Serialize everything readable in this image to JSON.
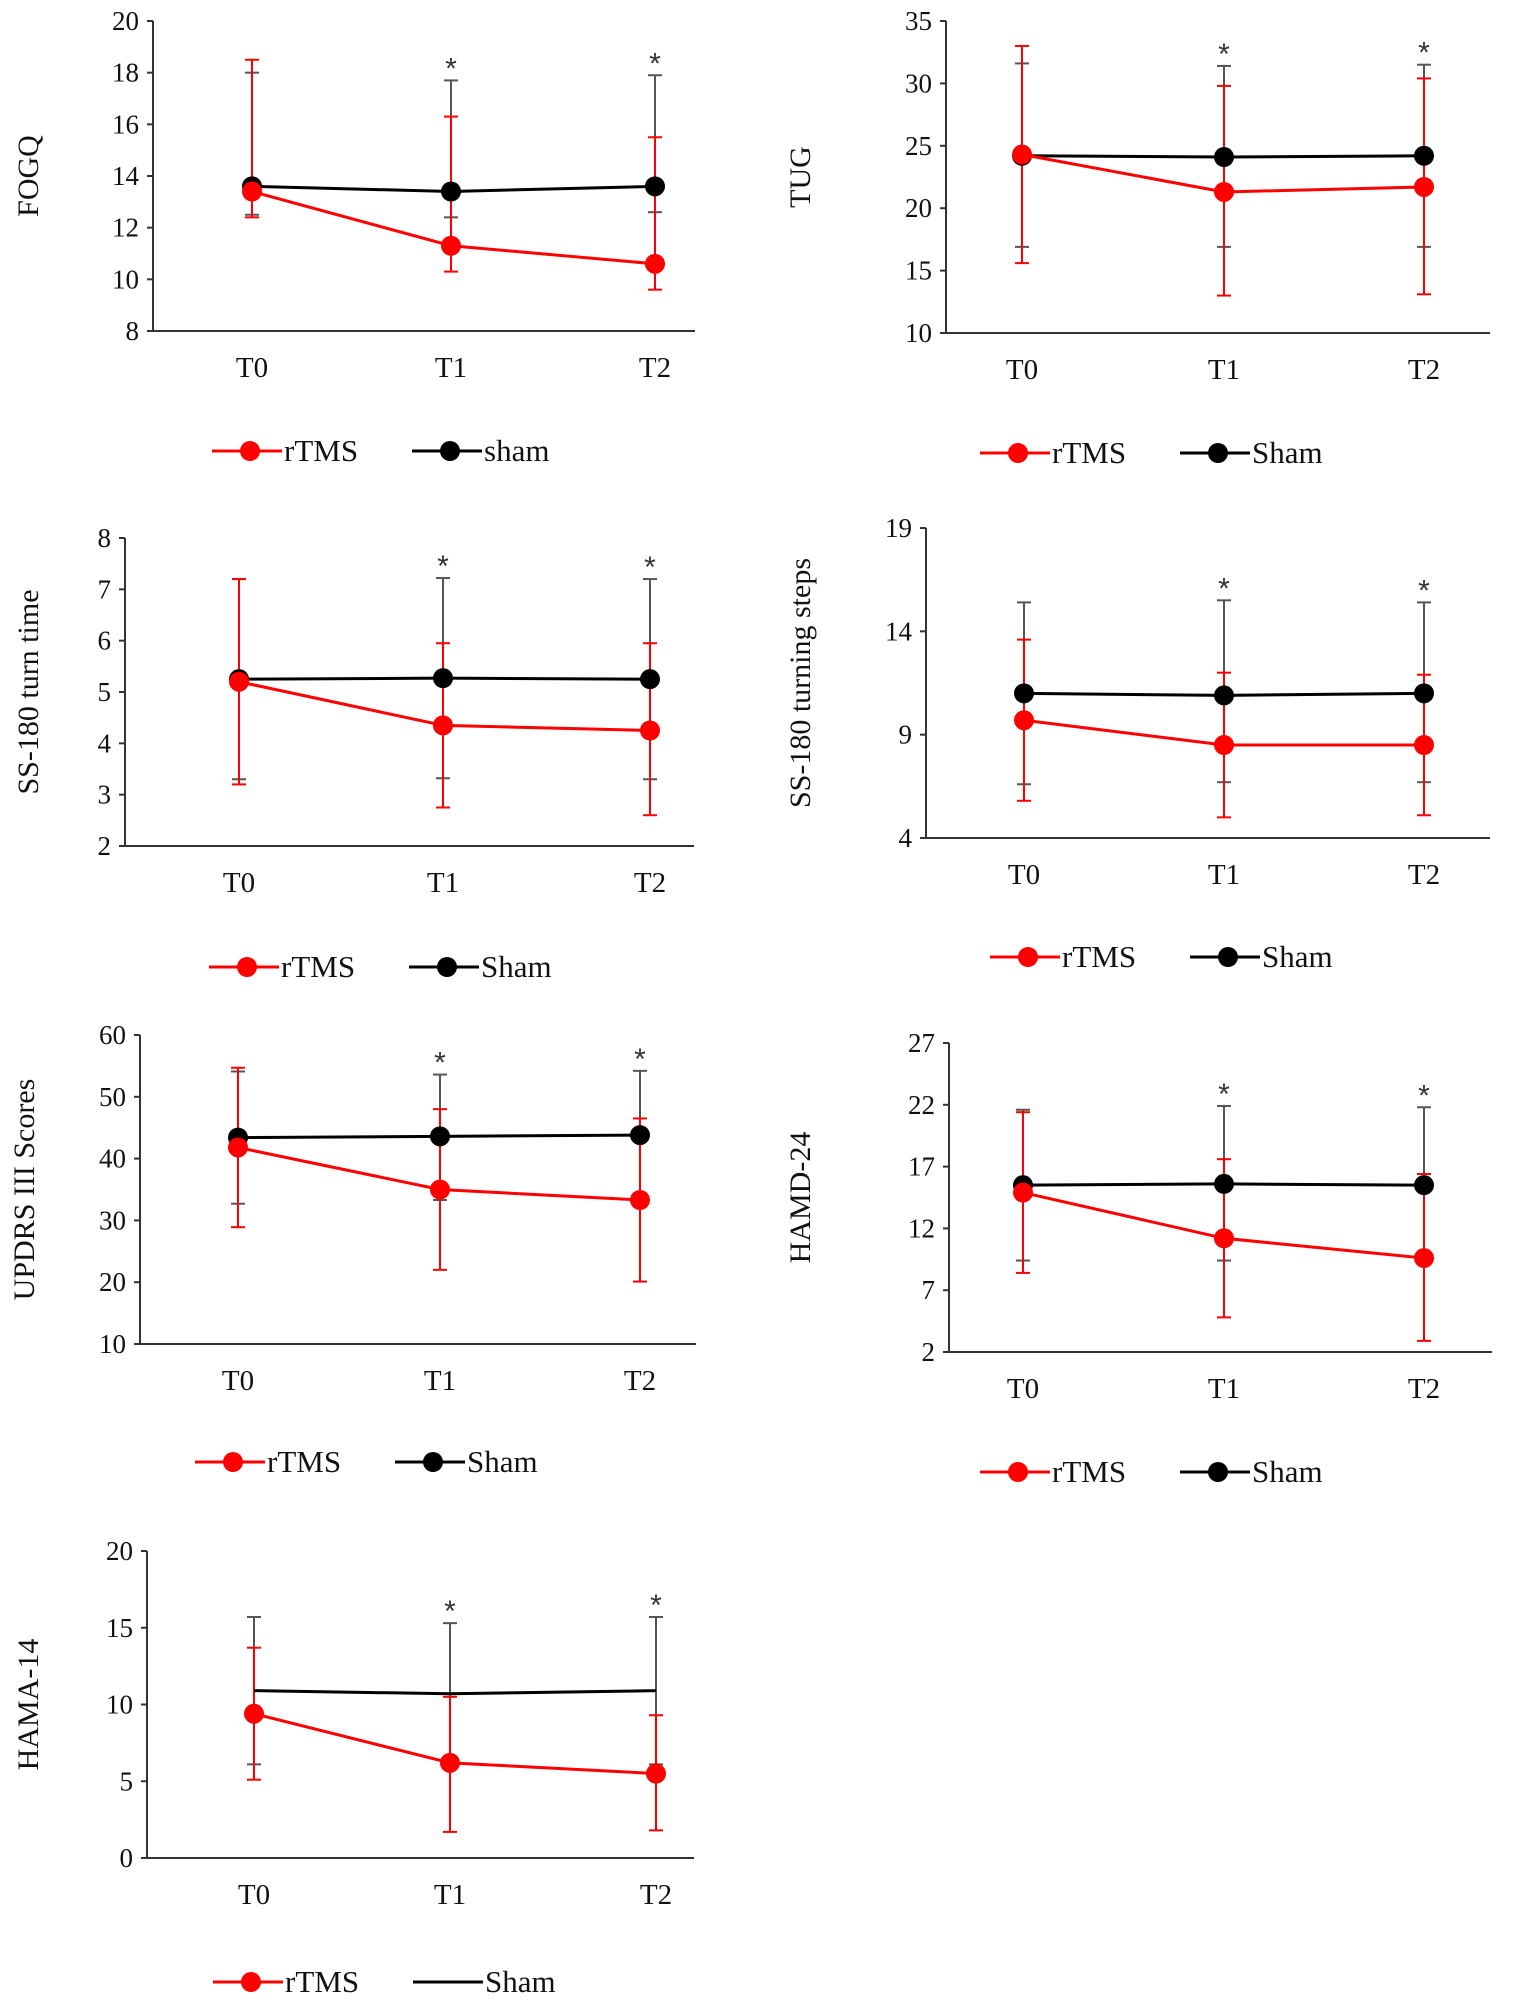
{
  "chart_data": [
    {
      "type": "line",
      "ylabel": "FOGQ",
      "categories": [
        "T0",
        "T1",
        "T2"
      ],
      "ylim": [
        8,
        20
      ],
      "yticks": [
        8,
        10,
        12,
        14,
        16,
        18,
        20
      ],
      "series": [
        {
          "name": "rTMS",
          "color": "#ff0000",
          "values": [
            13.4,
            11.3,
            10.6
          ],
          "error_up": [
            5.1,
            5.0,
            4.9
          ],
          "error_down": [
            1.0,
            1.0,
            1.0
          ]
        },
        {
          "name": "sham",
          "color": "#000000",
          "values": [
            13.6,
            13.4,
            13.6
          ],
          "error_up": [
            4.4,
            4.3,
            4.3
          ],
          "error_down": [
            1.1,
            1.0,
            1.0
          ]
        }
      ],
      "significance": [
        "",
        "*",
        "*"
      ]
    },
    {
      "type": "line",
      "ylabel": "TUG",
      "categories": [
        "T0",
        "T1",
        "T2"
      ],
      "ylim": [
        10,
        35
      ],
      "yticks": [
        10,
        15,
        20,
        25,
        30,
        35
      ],
      "series": [
        {
          "name": "rTMS",
          "color": "#ff0000",
          "values": [
            24.3,
            21.3,
            21.7
          ],
          "error_up": [
            8.7,
            8.5,
            8.7
          ],
          "error_down": [
            8.7,
            8.3,
            8.6
          ]
        },
        {
          "name": "Sham",
          "color": "#000000",
          "values": [
            24.2,
            24.1,
            24.2
          ],
          "error_up": [
            7.4,
            7.3,
            7.3
          ],
          "error_down": [
            7.3,
            7.2,
            7.3
          ]
        }
      ],
      "significance": [
        "",
        "*",
        "*"
      ]
    },
    {
      "type": "line",
      "ylabel": "SS-180 turn time",
      "categories": [
        "T0",
        "T1",
        "T2"
      ],
      "ylim": [
        2,
        8
      ],
      "yticks": [
        2,
        3,
        4,
        5,
        6,
        7,
        8
      ],
      "series": [
        {
          "name": "rTMS",
          "color": "#ff0000",
          "values": [
            5.2,
            4.35,
            4.25
          ],
          "error_up": [
            2.0,
            1.6,
            1.7
          ],
          "error_down": [
            2.0,
            1.6,
            1.65
          ]
        },
        {
          "name": "Sham",
          "color": "#000000",
          "values": [
            5.25,
            5.27,
            5.25
          ],
          "error_up": [
            1.95,
            1.95,
            1.95
          ],
          "error_down": [
            1.95,
            1.95,
            1.95
          ]
        }
      ],
      "significance": [
        "",
        "*",
        "*"
      ]
    },
    {
      "type": "line",
      "ylabel": "SS-180 turning steps",
      "categories": [
        "T0",
        "T1",
        "T2"
      ],
      "ylim": [
        4,
        19
      ],
      "yticks": [
        4,
        9,
        14,
        19
      ],
      "series": [
        {
          "name": "rTMS",
          "color": "#ff0000",
          "values": [
            9.7,
            8.5,
            8.5
          ],
          "error_up": [
            3.9,
            3.5,
            3.4
          ],
          "error_down": [
            3.9,
            3.5,
            3.4
          ]
        },
        {
          "name": "Sham",
          "color": "#000000",
          "values": [
            11.0,
            10.9,
            11.0
          ],
          "error_up": [
            4.4,
            4.6,
            4.4
          ],
          "error_down": [
            4.4,
            4.2,
            4.3
          ]
        }
      ],
      "significance": [
        "",
        "*",
        "*"
      ]
    },
    {
      "type": "line",
      "ylabel": "UPDRS III Scores",
      "categories": [
        "T0",
        "T1",
        "T2"
      ],
      "ylim": [
        10,
        60
      ],
      "yticks": [
        10,
        20,
        30,
        40,
        50,
        60
      ],
      "series": [
        {
          "name": "rTMS",
          "color": "#ff0000",
          "values": [
            41.8,
            35.0,
            33.3
          ],
          "error_up": [
            12.9,
            13.0,
            13.2
          ],
          "error_down": [
            12.9,
            13.0,
            13.2
          ]
        },
        {
          "name": "Sham",
          "color": "#000000",
          "values": [
            43.4,
            43.6,
            43.8
          ],
          "error_up": [
            10.7,
            10.0,
            10.4
          ],
          "error_down": [
            10.7,
            10.3,
            10.3
          ]
        }
      ],
      "significance": [
        "",
        "*",
        "*"
      ]
    },
    {
      "type": "line",
      "ylabel": "HAMD-24",
      "categories": [
        "T0",
        "T1",
        "T2"
      ],
      "ylim": [
        2,
        27
      ],
      "yticks": [
        2,
        7,
        12,
        17,
        22,
        27
      ],
      "series": [
        {
          "name": "rTMS",
          "color": "#ff0000",
          "values": [
            14.9,
            11.2,
            9.6
          ],
          "error_up": [
            6.5,
            6.4,
            6.8
          ],
          "error_down": [
            6.5,
            6.4,
            6.7
          ]
        },
        {
          "name": "Sham",
          "color": "#000000",
          "values": [
            15.5,
            15.6,
            15.5
          ],
          "error_up": [
            6.1,
            6.3,
            6.3
          ],
          "error_down": [
            6.1,
            6.2,
            6.1
          ]
        }
      ],
      "significance": [
        "",
        "*",
        "*"
      ]
    },
    {
      "type": "line",
      "ylabel": "HAMA-14",
      "categories": [
        "T0",
        "T1",
        "T2"
      ],
      "ylim": [
        0,
        20
      ],
      "yticks": [
        0,
        5,
        10,
        15,
        20
      ],
      "series": [
        {
          "name": "rTMS",
          "color": "#ff0000",
          "values": [
            9.4,
            6.2,
            5.5
          ],
          "error_up": [
            4.3,
            4.3,
            3.8
          ],
          "error_down": [
            4.3,
            4.5,
            3.7
          ]
        },
        {
          "name": "Sham",
          "color": "#000000",
          "values": [
            10.9,
            10.7,
            10.9
          ],
          "error_up": [
            4.8,
            4.6,
            4.8
          ],
          "error_down": [
            4.8,
            4.6,
            4.8
          ]
        }
      ],
      "significance": [
        "",
        "*",
        "*"
      ]
    }
  ]
}
